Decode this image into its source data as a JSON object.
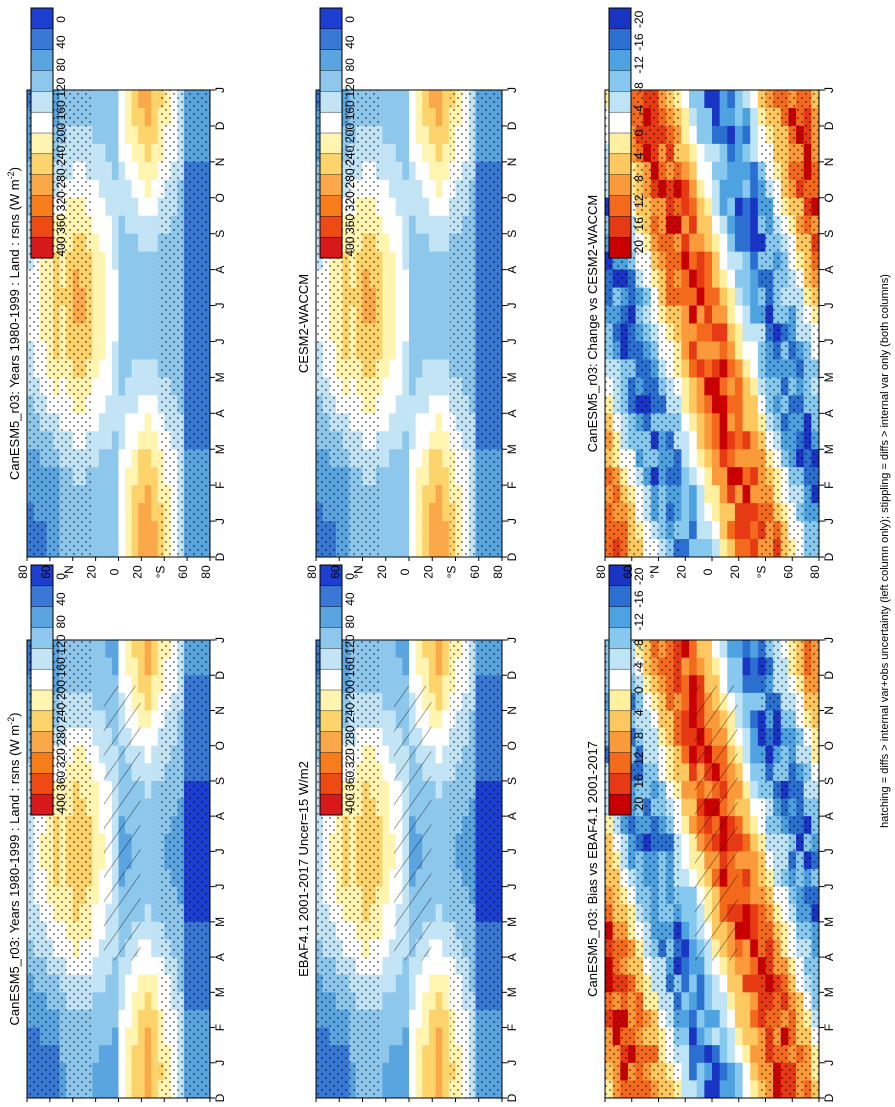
{
  "figure": {
    "footnote": "hatching = diffs > internal var+obs uncertainty (left column only); stippling = diffs > internal var only (both columns)"
  },
  "chart_data": [
    {
      "type": "heatmap",
      "id": "p1",
      "title": "CanESM5_r03: Years 1980-1999 : Land : rsns (W m",
      "title_sup": "-2",
      "title_end": ")",
      "x_categories": [
        "D",
        "J",
        "F",
        "M",
        "A",
        "M",
        "J",
        "J",
        "A",
        "S",
        "O",
        "N",
        "D",
        "J"
      ],
      "y_ticks": [
        "80",
        "60",
        "°N",
        "20",
        "0",
        "20",
        "°S",
        "60",
        "80"
      ],
      "colorbar": [
        "400",
        "360",
        "320",
        "280",
        "240",
        "200",
        "160",
        "120",
        "80",
        "40",
        "0"
      ],
      "kind": "abs",
      "hatching": true,
      "stipple": true
    },
    {
      "type": "heatmap",
      "id": "p2",
      "title": "CanESM5_r03: Years 1980-1999 : Land : rsns (W m",
      "title_sup": "-2",
      "title_end": ")",
      "x_categories": [
        "D",
        "J",
        "F",
        "M",
        "A",
        "M",
        "J",
        "J",
        "A",
        "S",
        "O",
        "N",
        "D",
        "J"
      ],
      "y_ticks": [
        "80",
        "60",
        "°N",
        "20",
        "0",
        "20",
        "°S",
        "60",
        "80"
      ],
      "colorbar": [
        "400",
        "360",
        "320",
        "280",
        "240",
        "200",
        "160",
        "120",
        "80",
        "40",
        "0"
      ],
      "kind": "abs",
      "hatching": false,
      "stipple": true
    },
    {
      "type": "heatmap",
      "id": "p3",
      "title": "EBAF4.1 2001-2017 Uncer=15 W/m2",
      "x_categories": [
        "D",
        "J",
        "F",
        "M",
        "A",
        "M",
        "J",
        "J",
        "A",
        "S",
        "O",
        "N",
        "D",
        "J"
      ],
      "y_ticks": [
        "80",
        "60",
        "°N",
        "20",
        "0",
        "20",
        "°S",
        "60",
        "80"
      ],
      "colorbar": [
        "400",
        "360",
        "320",
        "280",
        "240",
        "200",
        "160",
        "120",
        "80",
        "40",
        "0"
      ],
      "kind": "abs",
      "hatching": true,
      "stipple": true
    },
    {
      "type": "heatmap",
      "id": "p4",
      "title": "CESM2-WACCM",
      "x_categories": [
        "D",
        "J",
        "F",
        "M",
        "A",
        "M",
        "J",
        "J",
        "A",
        "S",
        "O",
        "N",
        "D",
        "J"
      ],
      "y_ticks": [
        "80",
        "60",
        "°N",
        "20",
        "0",
        "20",
        "°S",
        "60",
        "80"
      ],
      "colorbar": [
        "400",
        "360",
        "320",
        "280",
        "240",
        "200",
        "160",
        "120",
        "80",
        "40",
        "0"
      ],
      "kind": "abs",
      "hatching": false,
      "stipple": true
    },
    {
      "type": "heatmap",
      "id": "p5",
      "title": "CanESM5_r03: Bias vs EBAF4.1 2001-2017",
      "x_categories": [
        "D",
        "J",
        "F",
        "M",
        "A",
        "M",
        "J",
        "J",
        "A",
        "S",
        "O",
        "N",
        "D",
        "J"
      ],
      "y_ticks": [
        "80",
        "60",
        "°N",
        "20",
        "0",
        "20",
        "°S",
        "60",
        "80"
      ],
      "colorbar": [
        "20",
        "16",
        "12",
        "8",
        "4",
        "0",
        "-4",
        "-8",
        "-12",
        "-16",
        "-20"
      ],
      "kind": "diff",
      "hatching": true,
      "stipple": true
    },
    {
      "type": "heatmap",
      "id": "p6",
      "title": "CanESM5_r03: Change vs CESM2-WACCM",
      "x_categories": [
        "D",
        "J",
        "F",
        "M",
        "A",
        "M",
        "J",
        "J",
        "A",
        "S",
        "O",
        "N",
        "D",
        "J"
      ],
      "y_ticks": [
        "80",
        "60",
        "°N",
        "20",
        "0",
        "20",
        "°S",
        "60",
        "80"
      ],
      "colorbar": [
        "20",
        "16",
        "12",
        "8",
        "4",
        "0",
        "-4",
        "-8",
        "-12",
        "-16",
        "-20"
      ],
      "kind": "diff",
      "hatching": false,
      "stipple": true
    }
  ]
}
